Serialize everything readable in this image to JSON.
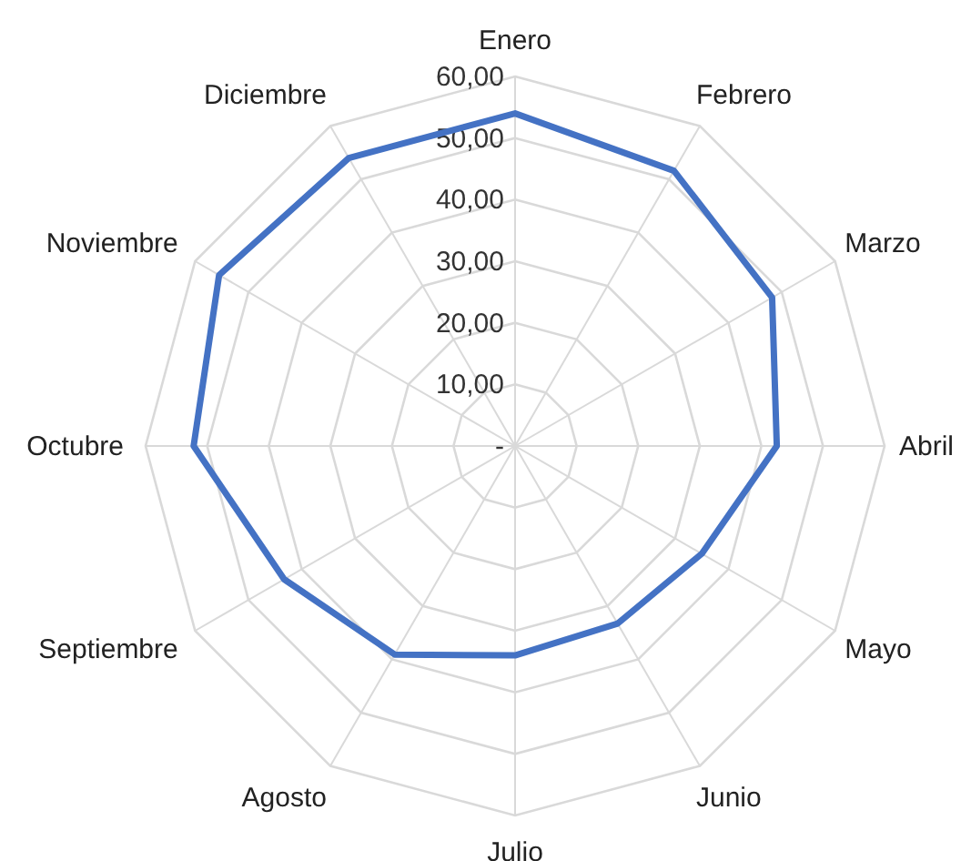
{
  "chart_data": {
    "type": "radar",
    "categories": [
      "Enero",
      "Febrero",
      "Marzo",
      "Abril",
      "Mayo",
      "Junio",
      "Julio",
      "Agosto",
      "Septiembre",
      "Octubre",
      "Noviembre",
      "Diciembre"
    ],
    "series": [
      {
        "color": "#4472c4",
        "values": [
          54,
          51.6,
          48.2,
          42.5,
          35,
          33.3,
          34,
          39.1,
          43.3,
          52.2,
          55.5,
          54
        ]
      }
    ],
    "ylim": [
      0,
      60
    ],
    "yticks": [
      {
        "value": 0,
        "label": "-"
      },
      {
        "value": 10,
        "label": "10,00"
      },
      {
        "value": 20,
        "label": "20,00"
      },
      {
        "value": 30,
        "label": "30,00"
      },
      {
        "value": 40,
        "label": "40,00"
      },
      {
        "value": 50,
        "label": "50,00"
      },
      {
        "value": 60,
        "label": "60,00"
      }
    ],
    "grid": true,
    "marker": "none",
    "line_style": "solid"
  }
}
